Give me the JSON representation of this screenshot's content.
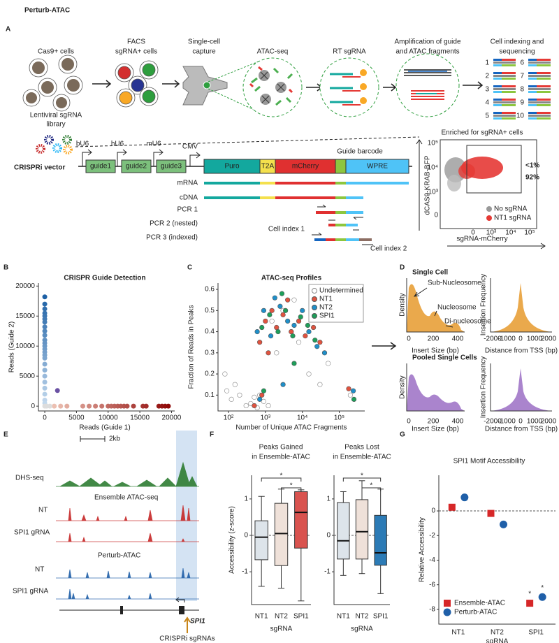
{
  "panel_labels": [
    "A",
    "B",
    "C",
    "D",
    "E",
    "F",
    "G"
  ],
  "panel_a": {
    "title": "Perturb-ATAC",
    "steps": [
      [
        "Cas9+ cells"
      ],
      [
        "FACS",
        "sgRNA+ cells"
      ],
      [
        "Single-cell",
        "capture"
      ],
      [
        "ATAC-seq"
      ],
      [
        "RT sgRNA"
      ],
      [
        "Amplification of guide",
        "and ATAC fragments"
      ],
      [
        "Cell indexing and",
        "sequencing"
      ]
    ],
    "library": [
      "Lentiviral sgRNA",
      "library"
    ],
    "indexes": [
      "1",
      "2",
      "3",
      "4",
      "5",
      "6",
      "7",
      "8",
      "9",
      "10"
    ],
    "vector": {
      "name": "CRISPRi vector",
      "promoters": [
        "bU6",
        "hU6",
        "mU6",
        "CMV"
      ],
      "guides": [
        "guide1",
        "guide2",
        "guide3"
      ],
      "elements": [
        "Puro",
        "T2A",
        "mCherry",
        "WPRE"
      ],
      "barcode": "Guide barcode",
      "products": [
        "mRNA",
        "cDNA",
        "PCR 1",
        "PCR 2 (nested)",
        "PCR 3 (indexed)"
      ],
      "cell_index": [
        "Cell index 1",
        "Cell index 2"
      ]
    },
    "facs": {
      "title": "Enriched for sgRNA+ cells",
      "ylabel": "dCAS9-KRAB-BFP",
      "xlabel": "sgRNA-mCherry",
      "gate_labels": [
        "<1%",
        "92%"
      ],
      "legend": [
        "No sgRNA",
        "NT1 sgRNA"
      ],
      "yticks": [
        "10⁵",
        "10⁴",
        "10³",
        "0"
      ],
      "xticks": [
        "0",
        "10³",
        "10⁴",
        "10⁵"
      ]
    }
  },
  "panel_d": {
    "top_title": "Single Cell",
    "bottom_title": "Pooled Single Cells",
    "annotations": [
      "Sub-Nucleosome",
      "Nucleosome",
      "Di-nucleosome"
    ],
    "density_label": "Density",
    "insert_label": "Insert Size (bp)",
    "insert_ticks": [
      0,
      200,
      400
    ],
    "freq_label": "Insertion Frequency",
    "tss_label": "Distance from TSS (bp)",
    "tss_ticks": [
      -2000,
      -1000,
      0,
      1000,
      2000
    ]
  },
  "panel_e": {
    "scale": "2kb",
    "tracks": [
      "DHS-seq",
      "Ensemble ATAC-seq",
      "NT",
      "SPI1 gRNA",
      "Perturb-ATAC",
      "NT",
      "SPI1 gRNA"
    ],
    "gene": "SPI1",
    "sgrna": "CRISPRi sgRNAs"
  },
  "chart_data": [
    {
      "type": "scatter",
      "title": "CRISPR Guide Detection",
      "xlabel": "Reads (Guide 1)",
      "ylabel": "Reads (Guide 2)",
      "xlim": [
        -1000,
        20500
      ],
      "ylim": [
        -800,
        20500
      ],
      "xticks": [
        0,
        5000,
        10000,
        15000,
        20000
      ],
      "yticks": [
        0,
        5000,
        10000,
        15000,
        20000
      ],
      "series": [
        {
          "colors": [
            "#c6dbef",
            "#08519c"
          ],
          "x": [
            0,
            0,
            0,
            0,
            0,
            0,
            0,
            0,
            0,
            0,
            0,
            0,
            0,
            0,
            0,
            0,
            0,
            0,
            0,
            0,
            0,
            0,
            0,
            0,
            0
          ],
          "values": [
            18200,
            17000,
            16200,
            15500,
            15000,
            14500,
            14000,
            13200,
            12500,
            11800,
            11000,
            10500,
            10000,
            9500,
            9000,
            8500,
            8000,
            7000,
            6000,
            5000,
            4000,
            3000,
            2000,
            1000,
            500
          ]
        },
        {
          "colors": [
            "#f4cfc0",
            "#8b0000"
          ],
          "x": [
            1500,
            2500,
            3500,
            6000,
            7000,
            8000,
            9000,
            10000,
            10500,
            11000,
            11500,
            12000,
            12500,
            13000,
            14000,
            15500,
            16000,
            18000,
            18500,
            19000,
            19500
          ],
          "values": [
            0,
            0,
            0,
            0,
            0,
            0,
            0,
            0,
            0,
            0,
            0,
            0,
            0,
            0,
            0,
            0,
            0,
            0,
            0,
            0,
            0
          ]
        },
        {
          "color": "#6a51a3",
          "x": [
            2000
          ],
          "values": [
            2600
          ]
        },
        {
          "color": "#dddddd",
          "x": [
            0,
            300,
            800
          ],
          "values": [
            0,
            0,
            0
          ]
        }
      ]
    },
    {
      "type": "scatter",
      "title": "ATAC-seq Profiles",
      "xlabel": "Number of Unique ATAC Fragments",
      "ylabel": "Fraction of Reads in Peaks",
      "xscale": "log",
      "xlim": [
        52,
        490000
      ],
      "ylim": [
        0.025,
        0.63
      ],
      "xticks": [
        {
          "value": 100,
          "label": "10²"
        },
        {
          "value": 1000,
          "label": "10³"
        },
        {
          "value": 10000,
          "label": "10⁴"
        },
        {
          "value": 100000,
          "label": "10⁵"
        }
      ],
      "yticks": [
        0.1,
        0.2,
        0.3,
        0.4,
        0.5,
        0.6
      ],
      "legend": "upper right",
      "series": [
        {
          "name": "Undetermined",
          "color": "#888888",
          "hollow": true,
          "x": [
            80,
            90,
            120,
            150,
            200,
            300,
            400,
            500,
            600,
            700,
            900,
            1200,
            2000,
            3000,
            5000,
            8000,
            15000,
            30000,
            50000,
            200000,
            1500,
            20000,
            6000
          ],
          "values": [
            0.2,
            0.12,
            0.08,
            0.15,
            0.1,
            0.05,
            0.06,
            0.09,
            0.04,
            0.1,
            0.07,
            0.05,
            0.3,
            0.5,
            0.4,
            0.35,
            0.2,
            0.15,
            0.25,
            0.1,
            0.45,
            0.5,
            0.55
          ]
        },
        {
          "name": "NT1",
          "color": "#e0533f",
          "x": [
            700,
            1000,
            1500,
            2000,
            3000,
            5000,
            8000,
            12000,
            20000,
            30000,
            500,
            800,
            180000,
            4000,
            1200
          ],
          "values": [
            0.35,
            0.45,
            0.5,
            0.42,
            0.48,
            0.4,
            0.45,
            0.38,
            0.42,
            0.35,
            0.05,
            0.1,
            0.13,
            0.55,
            0.3
          ]
        },
        {
          "name": "NT2",
          "color": "#1f8fc9",
          "x": [
            600,
            900,
            1400,
            2500,
            4000,
            6000,
            10000,
            15000,
            25000,
            40000,
            700,
            3000,
            240000,
            1800
          ],
          "values": [
            0.4,
            0.5,
            0.38,
            0.52,
            0.45,
            0.43,
            0.5,
            0.4,
            0.33,
            0.3,
            0.08,
            0.15,
            0.12,
            0.56
          ]
        },
        {
          "name": "SPI1",
          "color": "#1e9e5a",
          "x": [
            800,
            1300,
            2200,
            3500,
            5500,
            9000,
            14000,
            22000,
            900,
            6000,
            250000,
            2800
          ],
          "values": [
            0.42,
            0.48,
            0.4,
            0.5,
            0.38,
            0.47,
            0.43,
            0.36,
            0.12,
            0.25,
            0.08,
            0.58
          ]
        }
      ]
    },
    {
      "type": "box",
      "title": [
        "Peaks Gained",
        "in Ensemble-ATAC"
      ],
      "ylabel": "Accessibility (z-score)",
      "xlabel": "sgRNA",
      "categories": [
        "NT1",
        "NT2",
        "SPI1"
      ],
      "colors": [
        "#dde4ea",
        "#efe1d9",
        "#d9534f"
      ],
      "min": [
        -1.4,
        -1.45,
        -1.8
      ],
      "q1": [
        -0.67,
        -0.83,
        -0.35
      ],
      "median": [
        -0.05,
        0.05,
        0.63
      ],
      "q3": [
        0.4,
        0.88,
        1.2
      ],
      "max": [
        1.07,
        1.27,
        1.25
      ],
      "ylim": [
        -1.9,
        1.65
      ],
      "yticks": [
        -1,
        0,
        1
      ],
      "significance": [
        "*",
        "*"
      ]
    },
    {
      "type": "box",
      "title": [
        "Peaks Lost",
        "in Ensemble-ATAC"
      ],
      "xlabel": "sgRNA",
      "categories": [
        "NT1",
        "NT2",
        "SPI1"
      ],
      "colors": [
        "#dde4ea",
        "#efe1d9",
        "#2c7bb6"
      ],
      "min": [
        -1.1,
        -1.05,
        -1.6
      ],
      "q1": [
        -0.65,
        -0.65,
        -0.82
      ],
      "median": [
        -0.15,
        0.1,
        -0.48
      ],
      "q3": [
        0.9,
        0.98,
        0.55
      ],
      "max": [
        1.2,
        1.5,
        1.27
      ],
      "ylim": [
        -1.9,
        1.65
      ],
      "yticks": [
        -1,
        0,
        1
      ],
      "significance": [
        "*",
        "*"
      ]
    },
    {
      "type": "dot",
      "title": "SPI1 Motif Accessibility",
      "ylabel": "Relative Accessibility",
      "xlabel": "sgRNA",
      "categories": [
        "NT1",
        "NT2",
        "SPI1"
      ],
      "ylim": [
        -9.2,
        2.9
      ],
      "yticks": [
        0,
        -2,
        -4,
        -6,
        -8
      ],
      "legend": "lower left",
      "series": [
        {
          "name": "Ensemble-ATAC",
          "color": "#d62728",
          "marker": "square",
          "values": [
            0.3,
            -0.2,
            -7.5
          ]
        },
        {
          "name": "Perturb-ATAC",
          "color": "#1f5fa8",
          "marker": "circle",
          "values": [
            1.1,
            -1.1,
            -7.0
          ]
        }
      ],
      "significance": [
        "*",
        "*"
      ]
    }
  ]
}
